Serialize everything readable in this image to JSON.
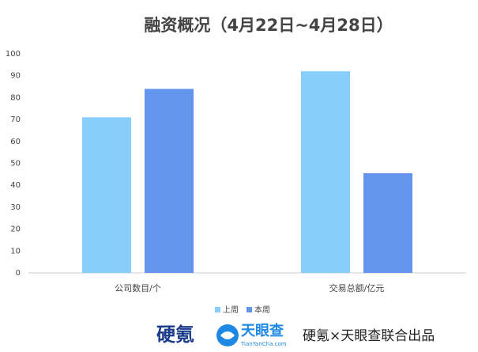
{
  "chart_data": {
    "type": "bar",
    "title": "融资概况（4月22日~4月28日）",
    "categories": [
      "公司数目/个",
      "交易总额/亿元"
    ],
    "series": [
      {
        "name": "上周",
        "color": "#87cefa",
        "values": [
          71,
          92
        ]
      },
      {
        "name": "本周",
        "color": "#6495ed",
        "values": [
          84,
          45.5
        ]
      }
    ],
    "ylim": [
      0,
      100
    ],
    "yticks": [
      0,
      10,
      20,
      30,
      40,
      50,
      60,
      70,
      80,
      90,
      100
    ],
    "grid": false,
    "legend": "bottom"
  },
  "footer": {
    "logo1": "硬氪",
    "logo2": "天眼查",
    "logo2_sub": "TianYanCha.com",
    "credit": "硬氪×天眼查联合出品"
  }
}
